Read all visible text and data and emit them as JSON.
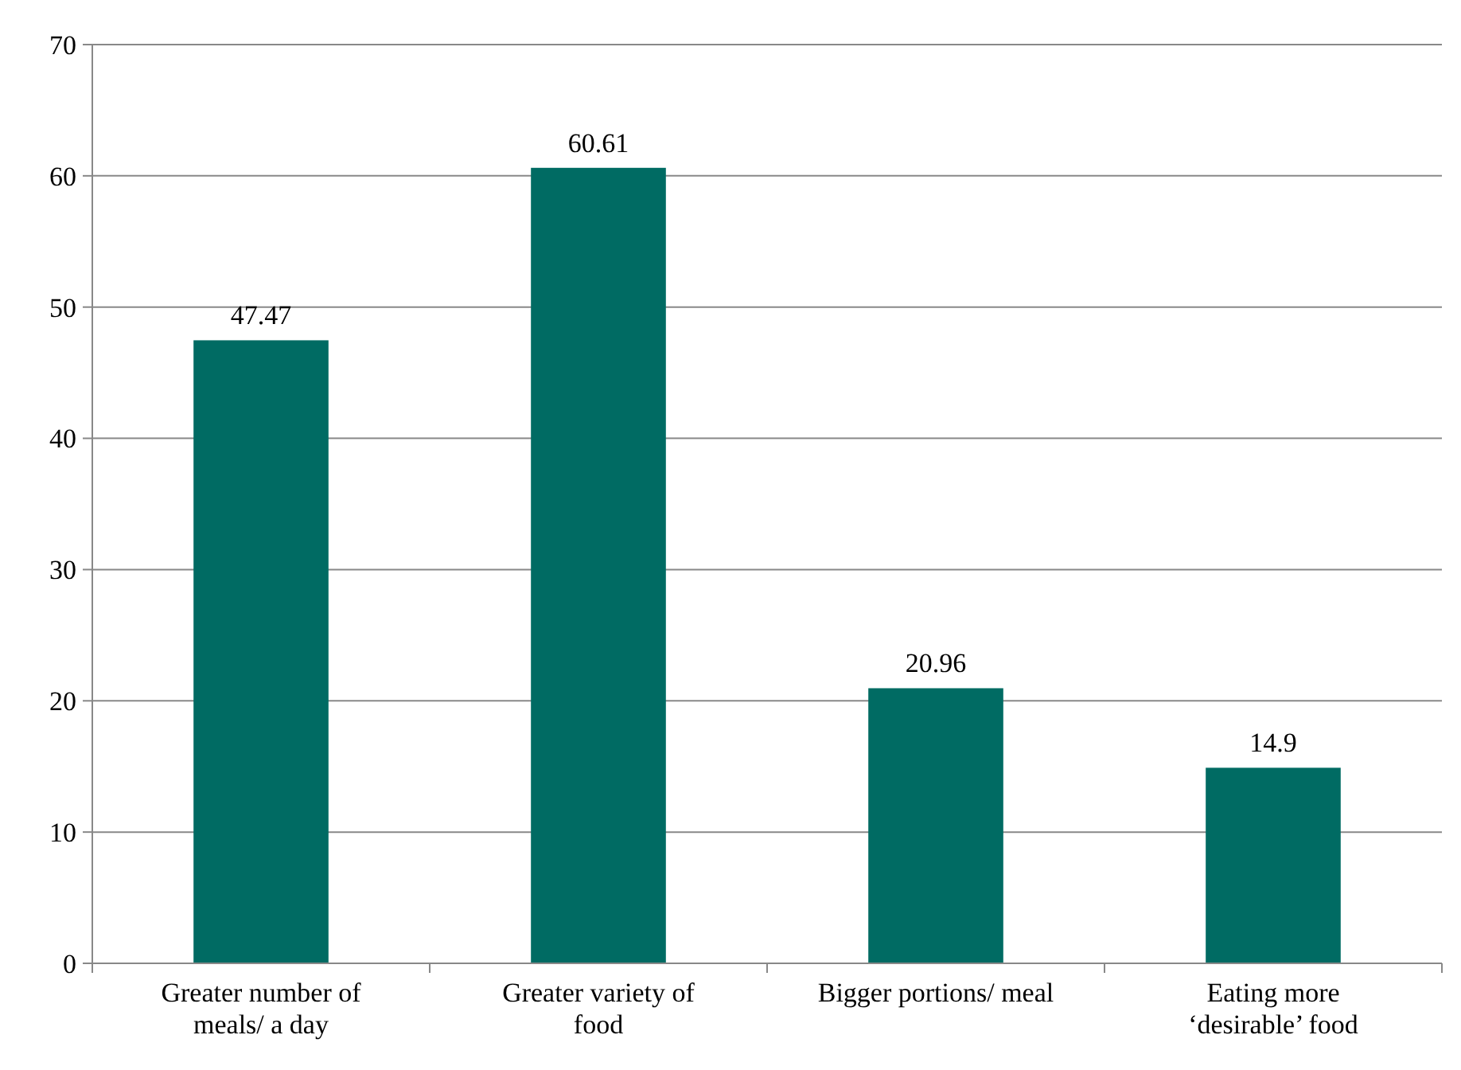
{
  "chart_data": {
    "type": "bar",
    "categories": [
      "Greater number of meals/ a day",
      "Greater variety of food",
      "Bigger portions/ meal",
      "Eating more ‘desirable’ food"
    ],
    "values": [
      47.47,
      60.61,
      20.96,
      14.9
    ],
    "color": "#006b63",
    "ylim": [
      0,
      70
    ],
    "yticks": [
      0,
      10,
      20,
      30,
      40,
      50,
      60,
      70
    ],
    "grid": "y",
    "data_labels": true
  }
}
